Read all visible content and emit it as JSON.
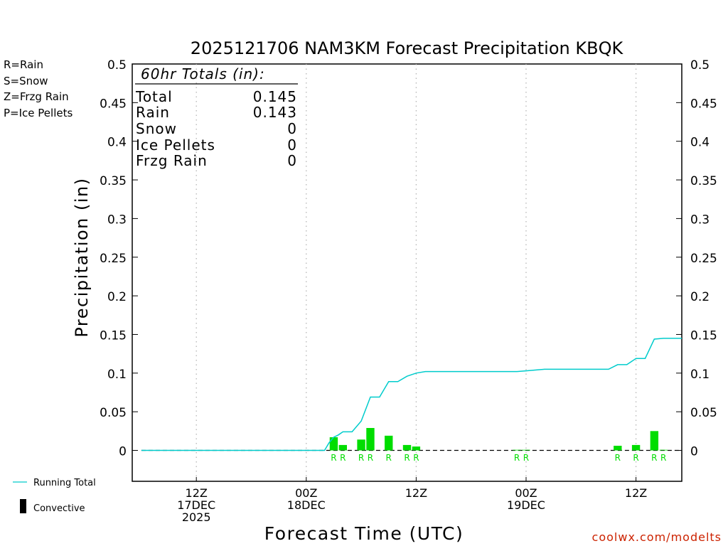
{
  "chart_data": {
    "type": "bar",
    "title": "2025121706 NAM3KM Forecast Precipitation KBQK",
    "xlabel": "Forecast Time (UTC)",
    "ylabel": "Precipitation (in)",
    "ylim": [
      -0.04,
      0.5
    ],
    "xlim_hours": [
      -1,
      59
    ],
    "y_ticks": [
      "0",
      "0.05",
      "0.1",
      "0.15",
      "0.2",
      "0.25",
      "0.3",
      "0.35",
      "0.4",
      "0.45",
      "0.5"
    ],
    "x_ticks": [
      {
        "hour": 6,
        "lines": [
          "12Z",
          "17DEC",
          "2025"
        ]
      },
      {
        "hour": 18,
        "lines": [
          "00Z",
          "18DEC"
        ]
      },
      {
        "hour": 30,
        "lines": [
          "12Z"
        ]
      },
      {
        "hour": 42,
        "lines": [
          "00Z",
          "19DEC"
        ]
      },
      {
        "hour": 54,
        "lines": [
          "12Z"
        ]
      }
    ],
    "legend_types": [
      {
        "text": "R=Rain",
        "color": "#33dd33"
      },
      {
        "text": "S=Snow",
        "color": "#4466ee"
      },
      {
        "text": "Z=Frzg Rain",
        "color": "#f0a050"
      },
      {
        "text": "P=Ice Pellets",
        "color": "#ee2288"
      }
    ],
    "legend_bottom": {
      "running_total": "Running Total",
      "convective": "Convective"
    },
    "totals_box": {
      "header": "60hr Totals (in):",
      "rows": [
        {
          "label": "Total",
          "value": "0.145"
        },
        {
          "label": "Rain",
          "value": "0.143"
        },
        {
          "label": "Snow",
          "value": "0"
        },
        {
          "label": "Ice Pellets",
          "value": "0"
        },
        {
          "label": "Frzg Rain",
          "value": "0"
        }
      ]
    },
    "bars": [
      {
        "hour": 21,
        "value": 0.017,
        "ptype": "R"
      },
      {
        "hour": 22,
        "value": 0.007,
        "ptype": "R"
      },
      {
        "hour": 24,
        "value": 0.014,
        "ptype": "R"
      },
      {
        "hour": 25,
        "value": 0.029,
        "ptype": "R"
      },
      {
        "hour": 27,
        "value": 0.019,
        "ptype": "R"
      },
      {
        "hour": 29,
        "value": 0.007,
        "ptype": "R"
      },
      {
        "hour": 30,
        "value": 0.005,
        "ptype": "R"
      },
      {
        "hour": 41,
        "value": 0.0005,
        "ptype": "R"
      },
      {
        "hour": 42,
        "value": 0.0005,
        "ptype": "R"
      },
      {
        "hour": 52,
        "value": 0.006,
        "ptype": "R"
      },
      {
        "hour": 54,
        "value": 0.007,
        "ptype": "R"
      },
      {
        "hour": 56,
        "value": 0.025,
        "ptype": "R"
      },
      {
        "hour": 57,
        "value": 0.0005,
        "ptype": "R"
      }
    ],
    "running_total": {
      "hours": [
        0,
        20,
        20.5,
        21,
        21.5,
        22,
        23,
        24,
        25,
        26,
        27,
        28,
        29,
        30,
        31,
        32,
        36,
        38,
        40,
        41,
        42,
        43,
        44,
        48,
        50,
        51,
        52,
        53,
        54,
        55,
        56,
        57,
        59
      ],
      "values": [
        0,
        0,
        0.01,
        0.017,
        0.02,
        0.024,
        0.024,
        0.038,
        0.069,
        0.069,
        0.089,
        0.089,
        0.096,
        0.1,
        0.102,
        0.102,
        0.102,
        0.102,
        0.102,
        0.102,
        0.103,
        0.104,
        0.105,
        0.105,
        0.105,
        0.105,
        0.111,
        0.111,
        0.119,
        0.119,
        0.144,
        0.145,
        0.145
      ]
    },
    "colors": {
      "rain": "#00dd00",
      "running_total": "#00cccc",
      "axis": "#000000",
      "grid": "#b0b0b0",
      "watermark": "#cc2200"
    },
    "watermark": "coolwx.com/modelts"
  }
}
